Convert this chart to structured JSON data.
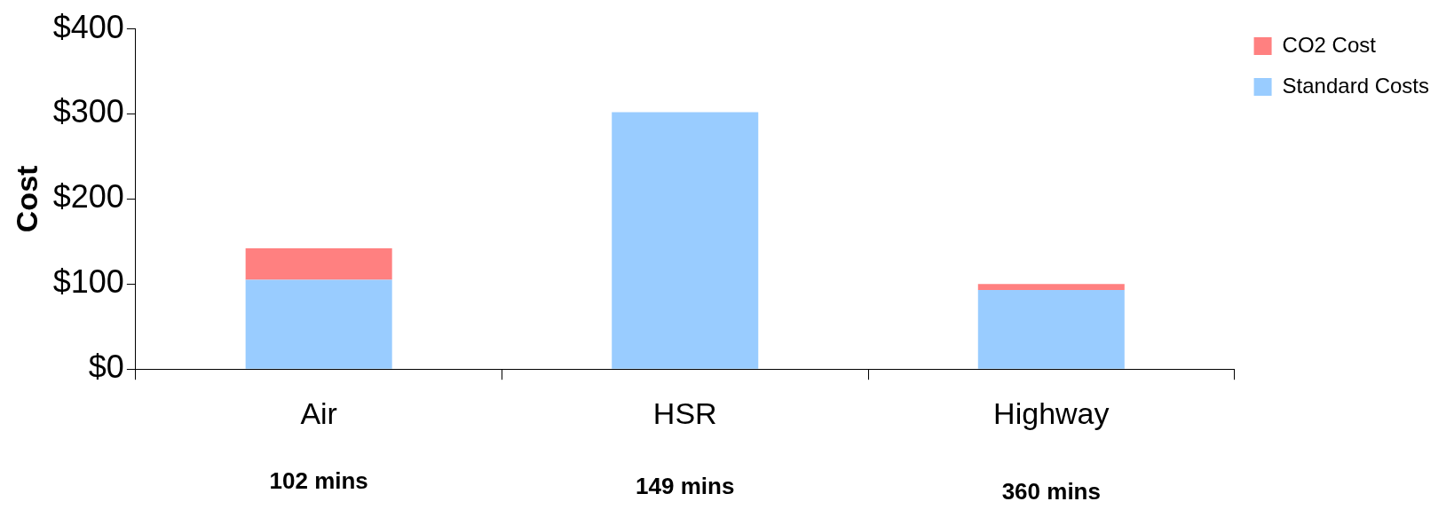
{
  "chart_data": {
    "type": "bar",
    "stacked": true,
    "categories": [
      "Air",
      "HSR",
      "Highway"
    ],
    "series": [
      {
        "name": "Standard Costs",
        "color": "#99ccff",
        "values": [
          105,
          302,
          93
        ]
      },
      {
        "name": "CO2 Cost",
        "color": "#ff8080",
        "values": [
          37,
          0,
          7
        ]
      }
    ],
    "ylabel": "Cost",
    "ylim": [
      0,
      400
    ],
    "yticks": [
      {
        "value": 0,
        "label": "$0"
      },
      {
        "value": 100,
        "label": "$100"
      },
      {
        "value": 200,
        "label": "$200"
      },
      {
        "value": 300,
        "label": "$300"
      },
      {
        "value": 400,
        "label": "$400"
      }
    ],
    "grid": false,
    "legend": "top right",
    "annotations": [
      "102 mins",
      "149 mins",
      "360 mins"
    ]
  }
}
